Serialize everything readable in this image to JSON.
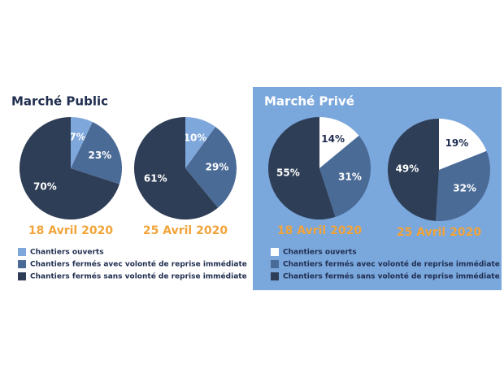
{
  "sections": [
    "Marché Public",
    "Marché Privé"
  ],
  "chart_data": [
    {
      "type": "pie",
      "title": "18 Avril 2020",
      "categories": [
        "Chantiers ouverts",
        "Chantiers fermés avec volonté de reprise immédiate",
        "Chantiers fermés sans volonté de reprise immédiate"
      ],
      "values": [
        7,
        23,
        70
      ],
      "value_labels": [
        "7%",
        "23%",
        "70%"
      ],
      "colors": [
        "#7ea7dc",
        "#4b6b97",
        "#2e3e56"
      ]
    },
    {
      "type": "pie",
      "title": "25 Avril 2020",
      "categories": [
        "Chantiers ouverts",
        "Chantiers fermés avec volonté de reprise immédiate",
        "Chantiers fermés sans volonté de reprise immédiate"
      ],
      "values": [
        10,
        29,
        61
      ],
      "value_labels": [
        "10%",
        "29%",
        "61%"
      ],
      "colors": [
        "#7ea7dc",
        "#4b6b97",
        "#2e3e56"
      ]
    },
    {
      "type": "pie",
      "title": "18 Avril 2020",
      "categories": [
        "Chantiers ouverts",
        "Chantiers fermés avec volonté de reprise immédiate",
        "Chantiers fermés sans volonté de reprise immédiate"
      ],
      "values": [
        14,
        31,
        55
      ],
      "value_labels": [
        "14%",
        "31%",
        "55%"
      ],
      "colors": [
        "#ffffff",
        "#4b6b97",
        "#2e3e56"
      ]
    },
    {
      "type": "pie",
      "title": "25 Avril 2020",
      "categories": [
        "Chantiers ouverts",
        "Chantiers fermés avec volonté de reprise immédiate",
        "Chantiers fermés sans volonté de reprise immédiate"
      ],
      "values": [
        19,
        32,
        49
      ],
      "value_labels": [
        "19%",
        "32%",
        "49%"
      ],
      "colors": [
        "#ffffff",
        "#4b6b97",
        "#2e3e56"
      ]
    }
  ]
}
